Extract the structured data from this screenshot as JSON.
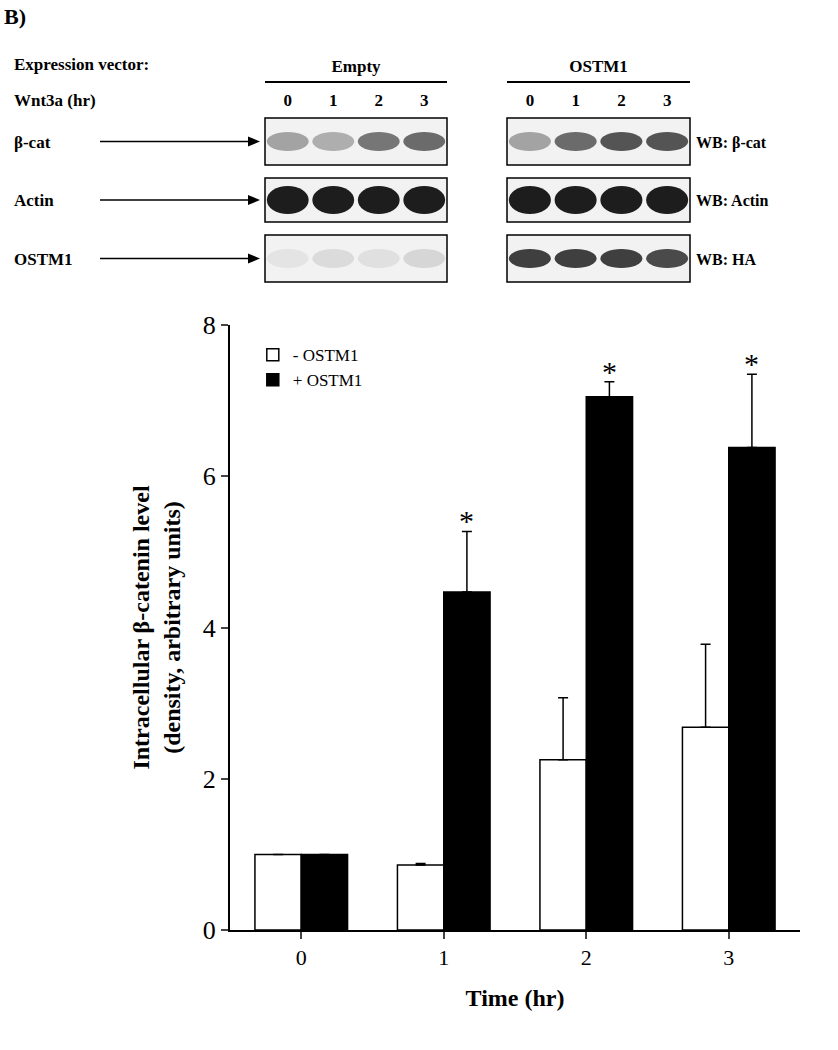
{
  "panel_label": "B)",
  "blot": {
    "vector_label": "Expression vector:",
    "time_label": "Wnt3a (hr)",
    "groups": [
      {
        "name": "Empty",
        "lanes": [
          "0",
          "1",
          "2",
          "3"
        ]
      },
      {
        "name": "OSTM1",
        "lanes": [
          "0",
          "1",
          "2",
          "3"
        ]
      }
    ],
    "rows": [
      {
        "label": "β-cat",
        "antibody": "WB: β-cat"
      },
      {
        "label": "Actin",
        "antibody": "WB: Actin"
      },
      {
        "label": "OSTM1",
        "antibody": "WB: HA"
      }
    ]
  },
  "chart_data": {
    "type": "bar",
    "x_label": "Time (hr)",
    "y_label": [
      "Intracellular β-catenin level",
      "(density, arbitrary units)"
    ],
    "categories": [
      "0",
      "1",
      "2",
      "3"
    ],
    "series": [
      {
        "name": "- OSTM1",
        "color": "#ffffff",
        "values": [
          1,
          0.86,
          2.25,
          2.68
        ],
        "errors": [
          0,
          0.02,
          0.82,
          1.1
        ]
      },
      {
        "name": "+ OSTM1",
        "color": "#000000",
        "values": [
          1,
          4.47,
          7.05,
          6.38
        ],
        "errors": [
          0,
          0.8,
          0.2,
          0.97
        ]
      }
    ],
    "annotations": [
      {
        "text": "*",
        "category": "1",
        "series": "+ OSTM1"
      },
      {
        "text": "*",
        "category": "2",
        "series": "+ OSTM1"
      },
      {
        "text": "*",
        "category": "3",
        "series": "+ OSTM1"
      }
    ],
    "ylim": [
      0,
      8
    ],
    "yticks": [
      0,
      2,
      4,
      6,
      8
    ],
    "grid": false,
    "legend": "top-left"
  }
}
